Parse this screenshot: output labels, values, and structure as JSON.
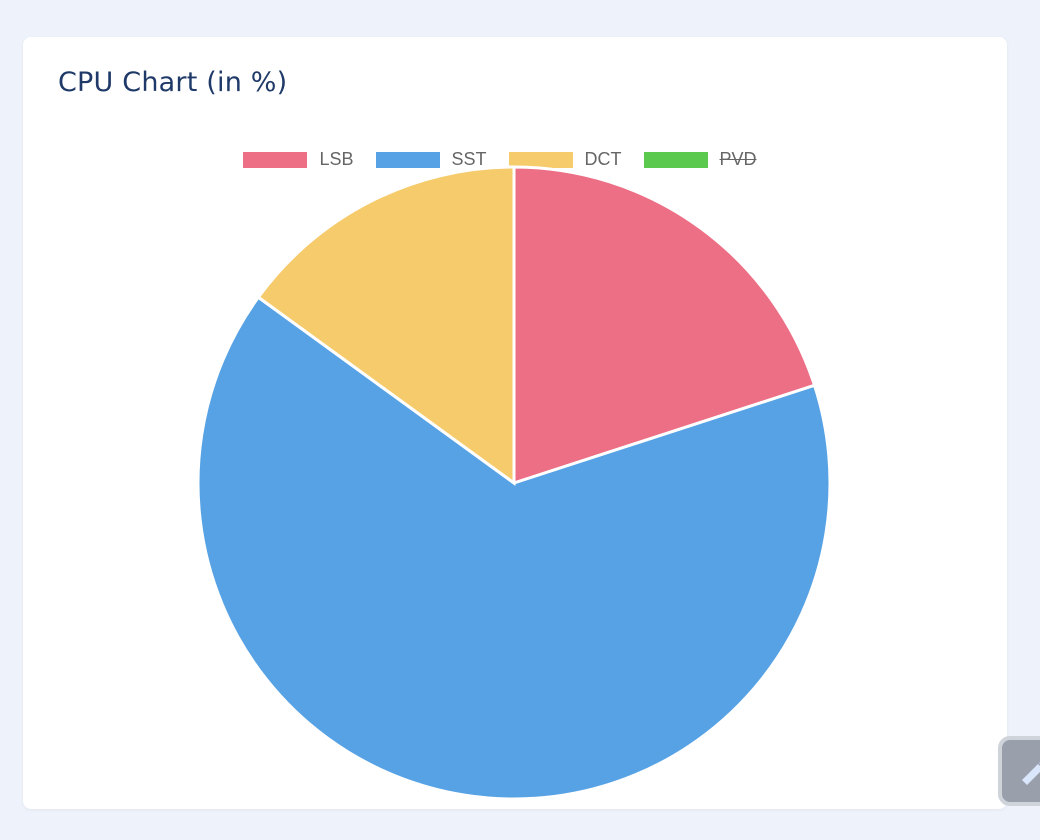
{
  "card": {
    "title": "CPU Chart (in %)"
  },
  "chart_data": {
    "type": "pie",
    "title": "CPU Chart (in %)",
    "legend_position": "top",
    "categories": [
      "LSB",
      "SST",
      "DCT",
      "PVD"
    ],
    "values": [
      20,
      65,
      15,
      0
    ],
    "hidden": [
      false,
      false,
      false,
      true
    ],
    "colors": [
      "#ec6f85",
      "#56a2e5",
      "#f6cb6b",
      "#5bc94d"
    ]
  },
  "icons": {
    "float_button": "pen-icon"
  }
}
